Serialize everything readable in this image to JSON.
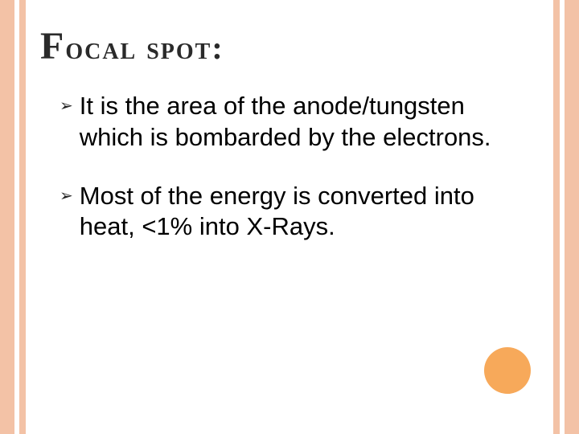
{
  "slide": {
    "title_html": "<span class=\"first-letter\">F</span>ocal spot:",
    "bullets": [
      {
        "text": "It is the area of the anode/tungsten which is bombarded by the electrons."
      },
      {
        "text": "Most of the energy is converted into heat, <1% into X-Rays."
      }
    ],
    "style": {
      "frame_color": "#f3c2a6",
      "dot_color": "#f7a95a",
      "background": "#ffffff",
      "title_color": "#2a2a2a",
      "text_color": "#000000",
      "title_fontsize_pt": 40,
      "body_fontsize_pt": 31,
      "bullet_glyph": "➢"
    }
  }
}
